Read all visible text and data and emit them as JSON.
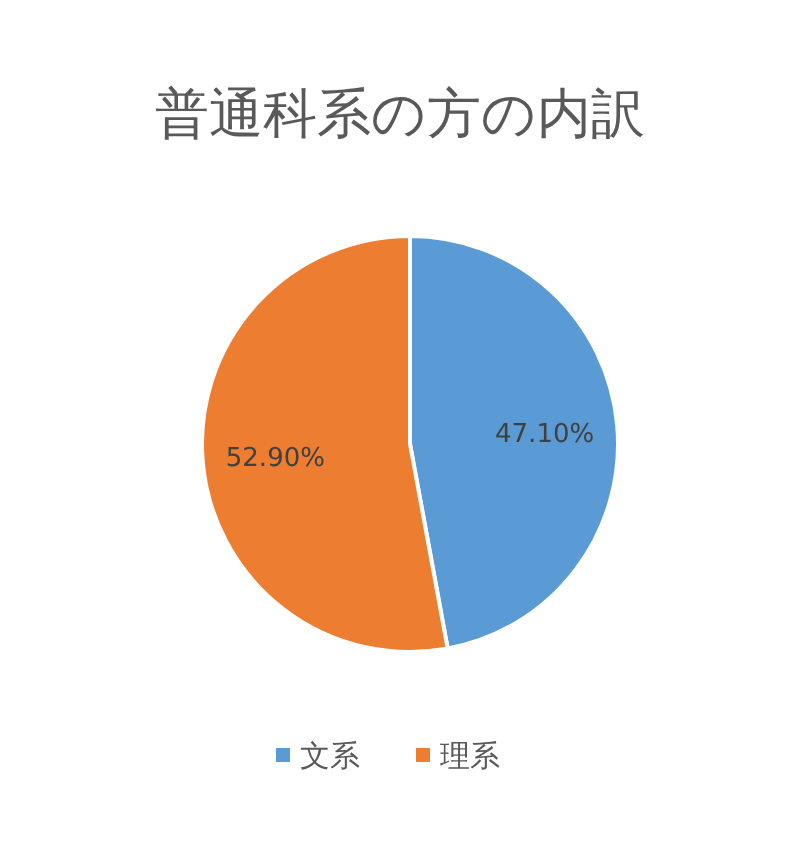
{
  "chart_data": {
    "type": "pie",
    "title": "普通科系の方の内訳",
    "categories": [
      "文系",
      "理系"
    ],
    "values": [
      47.1,
      52.9
    ],
    "colors": [
      "#5b9bd5",
      "#ed7d31"
    ],
    "value_labels": [
      "47.10%",
      "52.90%"
    ],
    "legend": "bottom"
  }
}
